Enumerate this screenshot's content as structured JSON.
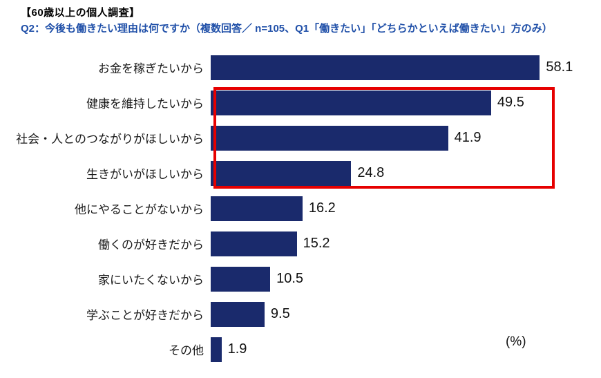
{
  "header": {
    "title": "【60歳以上の個人調査】",
    "subtitle": "Q2：今後も働きたい理由は何ですか（複数回答／ n=105、Q1「働きたい」「どちらかといえば働きたい」方のみ）"
  },
  "colors": {
    "bar": "#1a2a6c",
    "subtitle_text": "#1f4fa8",
    "highlight_border": "#e60000",
    "value_text": "#111111"
  },
  "chart_data": {
    "type": "bar",
    "orientation": "horizontal",
    "title": "Q2：今後も働きたい理由は何ですか",
    "note": "複数回答／ n=105、Q1「働きたい」「どちらかといえば働きたい」方のみ",
    "categories": [
      "お金を稼ぎたいから",
      "健康を維持したいから",
      "社会・人とのつながりがほしいから",
      "生きがいがほしいから",
      "他にやることがないから",
      "働くのが好きだから",
      "家にいたくないから",
      "学ぶことが好きだから",
      "その他"
    ],
    "values": [
      58.1,
      49.5,
      41.9,
      24.8,
      16.2,
      15.2,
      10.5,
      9.5,
      1.9
    ],
    "unit_label": "(%)",
    "xlim": [
      0,
      65
    ],
    "grid": false,
    "legend": false,
    "value_labels": true,
    "highlight": {
      "start_index": 1,
      "end_index": 3
    }
  }
}
